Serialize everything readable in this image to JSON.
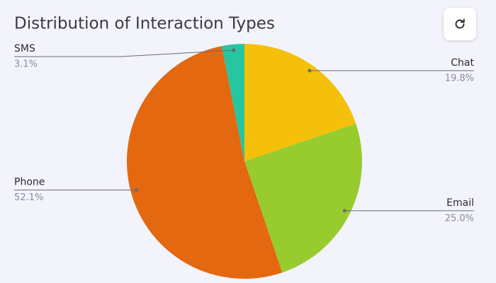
{
  "chart_data": {
    "type": "pie",
    "title": "Distribution of Interaction Types",
    "categories": [
      "Chat",
      "Email",
      "Phone",
      "SMS"
    ],
    "values": [
      19.8,
      25.0,
      52.1,
      3.1
    ],
    "value_labels": [
      "19.8%",
      "25.0%",
      "52.1%",
      "3.1%"
    ],
    "colors": [
      "#f5c00b",
      "#98cb2e",
      "#e4680f",
      "#26c6a0"
    ]
  }
}
